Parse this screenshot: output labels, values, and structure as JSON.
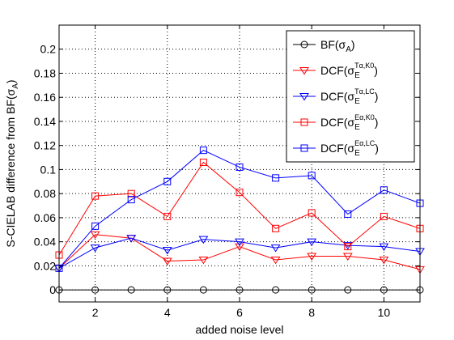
{
  "chart_data": {
    "type": "line",
    "xlabel": "added noise level",
    "ylabel": "S-CIELAB difference from BF(σ",
    "ylabel_sub": "A",
    "ylabel_close": ")",
    "xlim": [
      1,
      11
    ],
    "ylim": [
      -0.01,
      0.22
    ],
    "xticks": [
      2,
      4,
      6,
      8,
      10
    ],
    "yticks": [
      0,
      0.02,
      0.04,
      0.06,
      0.08,
      0.1,
      0.12,
      0.14,
      0.16,
      0.18,
      0.2
    ],
    "ytick_labels": [
      "0",
      "0.02",
      "0.04",
      "0.06",
      "0.08",
      "0.1",
      "0.12",
      "0.14",
      "0.16",
      "0.18",
      "0.2"
    ],
    "grid": true,
    "legend_position": "top-right",
    "x": [
      1,
      2,
      3,
      4,
      5,
      6,
      7,
      8,
      9,
      10,
      11
    ],
    "series": [
      {
        "name": "BF(σA)",
        "legend": {
          "pre": "BF(σ",
          "sub": "A",
          "sup": "",
          "post": ")"
        },
        "color": "#000000",
        "marker": "circle",
        "values": [
          0,
          0,
          0,
          0,
          0,
          0,
          0,
          0,
          0,
          0,
          0
        ]
      },
      {
        "name": "DCF(σE^Tα,K0)",
        "legend": {
          "pre": "DCF(σ",
          "sub": "E",
          "sup": "Tα,K0",
          "post": ")"
        },
        "color": "#ff0000",
        "marker": "triangle-down",
        "values": [
          0.018,
          0.046,
          0.043,
          0.024,
          0.025,
          0.036,
          0.025,
          0.028,
          0.028,
          0.025,
          0.017
        ]
      },
      {
        "name": "DCF(σE^Tα,LC)",
        "legend": {
          "pre": "DCF(σ",
          "sub": "E",
          "sup": "Tα,LC",
          "post": ")"
        },
        "color": "#0000ff",
        "marker": "triangle-down",
        "values": [
          0.018,
          0.035,
          0.043,
          0.033,
          0.042,
          0.04,
          0.035,
          0.04,
          0.037,
          0.036,
          0.032
        ]
      },
      {
        "name": "DCF(σE^Eα,K0)",
        "legend": {
          "pre": "DCF(σ",
          "sub": "E",
          "sup": "Eα,K0",
          "post": ")"
        },
        "color": "#ff0000",
        "marker": "square",
        "values": [
          0.029,
          0.078,
          0.08,
          0.061,
          0.106,
          0.081,
          0.051,
          0.064,
          0.036,
          0.061,
          0.051
        ]
      },
      {
        "name": "DCF(σE^Eα,LC)",
        "legend": {
          "pre": "DCF(σ",
          "sub": "E",
          "sup": "Eα,LC",
          "post": ")"
        },
        "color": "#0000ff",
        "marker": "square",
        "values": [
          0.018,
          0.053,
          0.075,
          0.09,
          0.116,
          0.102,
          0.093,
          0.095,
          0.063,
          0.083,
          0.072
        ]
      }
    ]
  }
}
